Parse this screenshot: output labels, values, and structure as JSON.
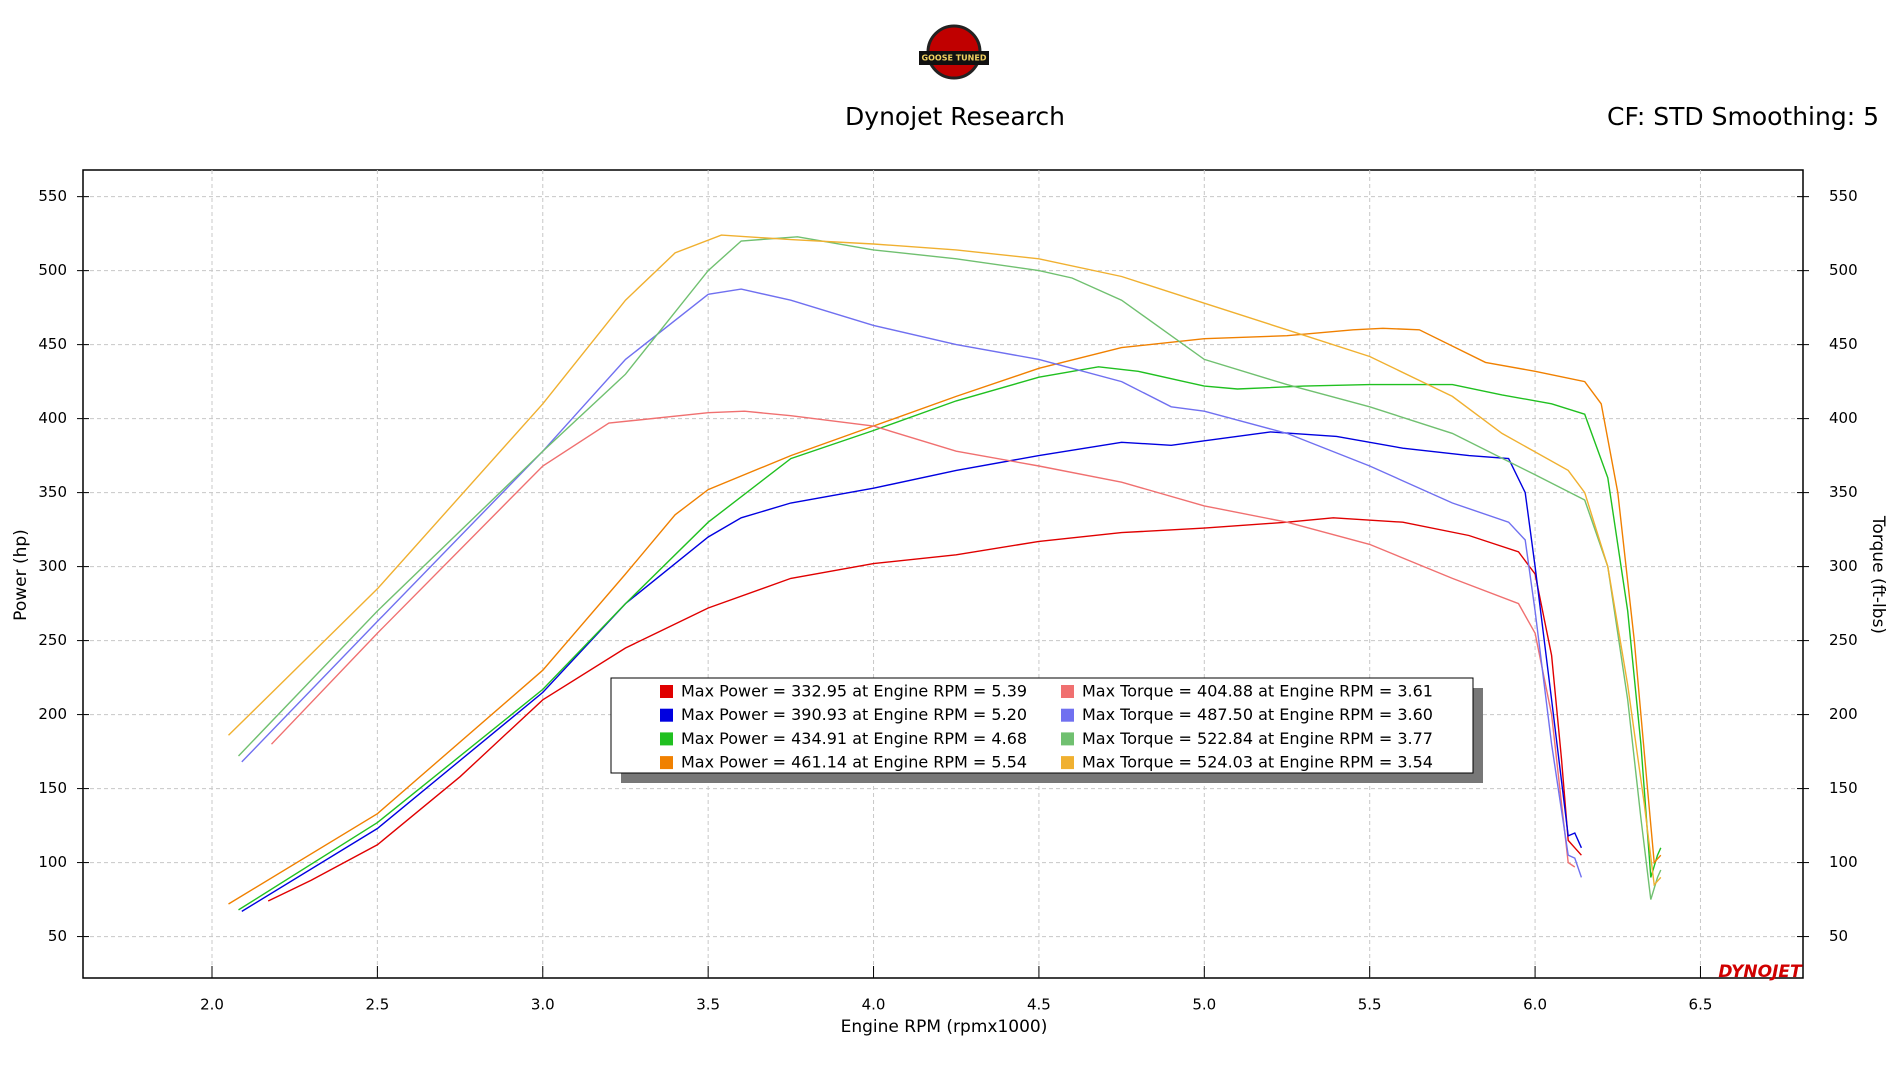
{
  "chart_data": {
    "type": "line",
    "logo": "GOOSE TUNED",
    "title": "Dynojet Research",
    "subtitle": "CF: STD Smoothing: 5",
    "brand": "DYNOJET",
    "x_label": "Engine RPM (rpmx1000)",
    "y_label": "Power (hp)",
    "y2_label": "Torque (ft-lbs)",
    "xlim": [
      1.61,
      6.81
    ],
    "xticks": [
      {
        "value": 2,
        "label": "2.0"
      },
      2.5,
      {
        "value": 3,
        "label": "3.0"
      },
      3.5,
      {
        "value": 4,
        "label": "4.0"
      },
      4.5,
      {
        "value": 5,
        "label": "5.0"
      },
      5.5,
      {
        "value": 6,
        "label": "6.0"
      },
      6.5
    ],
    "ylim": [
      22,
      568
    ],
    "yticks": [
      50,
      100,
      150,
      200,
      250,
      300,
      350,
      400,
      450,
      500,
      550
    ],
    "y2lim": [
      22,
      568
    ],
    "y2ticks": [
      50,
      100,
      150,
      200,
      250,
      300,
      350,
      400,
      450,
      500,
      550
    ],
    "grid": true,
    "series": [
      {
        "name": "Max Power = 332.95 at Engine RPM = 5.39",
        "color": "#e00000",
        "x": [
          2.17,
          2.3,
          2.5,
          2.75,
          3.0,
          3.25,
          3.5,
          3.75,
          4.0,
          4.25,
          4.5,
          4.75,
          5.0,
          5.25,
          5.39,
          5.6,
          5.8,
          5.95,
          6.0,
          6.05,
          6.08,
          6.1,
          6.12,
          6.14
        ],
        "values": [
          74,
          88,
          112,
          158,
          210,
          245,
          272,
          292,
          302,
          308,
          317,
          323,
          326,
          330,
          333,
          330,
          321,
          310,
          295,
          240,
          170,
          115,
          110,
          105
        ]
      },
      {
        "name": "Max Power = 390.93 at Engine RPM = 5.20",
        "color": "#0000e0",
        "x": [
          2.09,
          2.5,
          3.0,
          3.25,
          3.5,
          3.6,
          3.75,
          4.0,
          4.25,
          4.5,
          4.75,
          4.9,
          5.0,
          5.2,
          5.4,
          5.6,
          5.8,
          5.92,
          5.97,
          6.0,
          6.05,
          6.1,
          6.12,
          6.14
        ],
        "values": [
          67,
          123,
          215,
          275,
          320,
          333,
          343,
          353,
          365,
          375,
          384,
          382,
          385,
          391,
          388,
          380,
          375,
          373,
          350,
          300,
          210,
          118,
          120,
          110
        ]
      },
      {
        "name": "Max Power = 434.91 at Engine RPM = 4.68",
        "color": "#20c020",
        "x": [
          2.08,
          2.5,
          3.0,
          3.25,
          3.5,
          3.75,
          4.0,
          4.25,
          4.5,
          4.68,
          4.8,
          5.0,
          5.1,
          5.3,
          5.5,
          5.75,
          5.9,
          6.05,
          6.15,
          6.22,
          6.28,
          6.32,
          6.35,
          6.37,
          6.38
        ],
        "values": [
          68,
          127,
          217,
          275,
          330,
          373,
          392,
          412,
          428,
          435,
          432,
          422,
          420,
          422,
          423,
          423,
          416,
          410,
          403,
          360,
          270,
          180,
          90,
          105,
          110
        ]
      },
      {
        "name": "Max Power = 461.14 at Engine RPM = 5.54",
        "color": "#f08000",
        "x": [
          2.05,
          2.5,
          3.0,
          3.25,
          3.4,
          3.5,
          3.75,
          4.0,
          4.25,
          4.5,
          4.75,
          5.0,
          5.25,
          5.45,
          5.54,
          5.65,
          5.85,
          6.0,
          6.15,
          6.2,
          6.25,
          6.3,
          6.34,
          6.36,
          6.38
        ],
        "values": [
          72,
          133,
          230,
          295,
          335,
          352,
          375,
          395,
          415,
          434,
          448,
          454,
          456,
          460,
          461,
          460,
          438,
          432,
          425,
          410,
          350,
          250,
          150,
          100,
          105
        ]
      },
      {
        "name": "Max Torque = 404.88 at Engine RPM = 3.61",
        "color": "#f07070",
        "axis": "y2",
        "x": [
          2.18,
          2.5,
          3.0,
          3.2,
          3.5,
          3.61,
          3.75,
          4.0,
          4.25,
          4.5,
          4.75,
          5.0,
          5.25,
          5.5,
          5.75,
          5.95,
          6.0,
          6.05,
          6.08,
          6.1,
          6.12
        ],
        "values": [
          180,
          255,
          368,
          397,
          404,
          405,
          402,
          395,
          378,
          368,
          357,
          341,
          330,
          315,
          292,
          275,
          255,
          200,
          140,
          100,
          97
        ]
      },
      {
        "name": "Max Torque = 487.50 at Engine RPM = 3.60",
        "color": "#7070f0",
        "axis": "y2",
        "x": [
          2.09,
          2.5,
          3.0,
          3.25,
          3.5,
          3.6,
          3.75,
          4.0,
          4.25,
          4.5,
          4.75,
          4.9,
          5.0,
          5.25,
          5.5,
          5.75,
          5.92,
          5.97,
          6.0,
          6.05,
          6.1,
          6.12,
          6.14
        ],
        "values": [
          168,
          263,
          378,
          440,
          484,
          487.5,
          480,
          463,
          450,
          440,
          425,
          408,
          405,
          390,
          368,
          343,
          330,
          318,
          270,
          180,
          105,
          103,
          90
        ]
      },
      {
        "name": "Max Torque = 522.84 at Engine RPM = 3.77",
        "color": "#70c070",
        "axis": "y2",
        "x": [
          2.08,
          2.5,
          3.0,
          3.25,
          3.5,
          3.6,
          3.77,
          4.0,
          4.25,
          4.5,
          4.6,
          4.75,
          5.0,
          5.25,
          5.5,
          5.75,
          6.0,
          6.15,
          6.22,
          6.28,
          6.32,
          6.35,
          6.37,
          6.38
        ],
        "values": [
          172,
          270,
          378,
          430,
          500,
          520,
          522.84,
          514,
          508,
          500,
          495,
          480,
          440,
          423,
          408,
          390,
          362,
          345,
          300,
          210,
          130,
          75,
          90,
          95
        ]
      },
      {
        "name": "Max Torque = 524.03 at Engine RPM = 3.54",
        "color": "#f0b030",
        "axis": "y2",
        "x": [
          2.05,
          2.5,
          3.0,
          3.25,
          3.4,
          3.54,
          3.75,
          4.0,
          4.25,
          4.5,
          4.75,
          5.0,
          5.25,
          5.5,
          5.75,
          5.9,
          6.1,
          6.15,
          6.22,
          6.28,
          6.33,
          6.36,
          6.38
        ],
        "values": [
          186,
          285,
          410,
          480,
          512,
          524.03,
          521,
          518,
          514,
          508,
          496,
          478,
          460,
          442,
          415,
          390,
          365,
          350,
          300,
          220,
          140,
          85,
          90
        ]
      }
    ]
  }
}
